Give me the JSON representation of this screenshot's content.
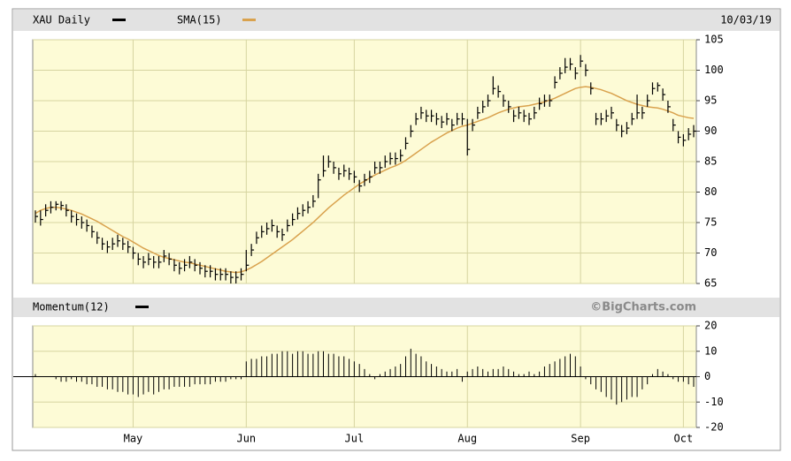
{
  "chart_data": [
    {
      "type": "ohlc",
      "date": "10/03/19",
      "ylim": [
        65,
        105
      ],
      "yticks": [
        65,
        70,
        75,
        80,
        85,
        90,
        95,
        100,
        105
      ],
      "grid": true,
      "series": [
        {
          "name": "XAU Daily",
          "color": "#000000",
          "values": [
            76,
            75.5,
            77,
            77.5,
            78,
            77.8,
            77,
            76,
            75.5,
            75,
            74.5,
            73.5,
            72.5,
            71.5,
            71,
            71.5,
            72,
            71.5,
            71,
            70,
            69,
            68.5,
            69,
            68.5,
            68.5,
            69.5,
            69,
            68,
            67.5,
            68,
            68.5,
            68,
            67.5,
            67,
            67,
            66.5,
            66.5,
            66.5,
            66,
            66,
            66.5,
            68,
            70.5,
            72.5,
            73.5,
            74,
            74.5,
            73.5,
            73,
            74.5,
            75.5,
            76.5,
            77,
            77.5,
            78.5,
            82,
            83.5,
            85,
            84,
            83,
            83.5,
            83,
            82.5,
            81,
            82,
            82.5,
            84,
            84,
            85,
            85.5,
            85.5,
            86,
            88,
            90,
            92,
            93,
            92.5,
            92.5,
            92,
            91.5,
            92,
            91,
            92,
            92,
            87,
            91,
            93,
            94,
            95,
            97,
            96.5,
            95,
            94,
            92.5,
            93,
            92.5,
            92,
            93,
            94.5,
            95,
            95,
            98,
            99.5,
            100.5,
            101,
            99.5,
            101.5,
            100,
            97,
            92,
            92,
            92.5,
            93,
            91,
            90,
            90.5,
            92,
            93,
            93,
            95,
            97,
            97.5,
            96,
            94,
            91,
            89,
            88.5,
            89.5,
            90
          ],
          "high": [
            77,
            77,
            78,
            78.5,
            78.5,
            78.5,
            78,
            77,
            76.5,
            76,
            75.5,
            74.5,
            73.5,
            72.5,
            72,
            72.5,
            73,
            72.5,
            72,
            71,
            70,
            69.5,
            70,
            69.5,
            69.5,
            70.5,
            70,
            69,
            68.5,
            69,
            69.5,
            69,
            68.5,
            68,
            68,
            67.5,
            67.5,
            67.5,
            67,
            67,
            67.5,
            70.5,
            71.5,
            73.5,
            74.5,
            75,
            75.5,
            74.5,
            74,
            75.5,
            76.5,
            77.5,
            78,
            78.5,
            79.5,
            83,
            86,
            86,
            85,
            84,
            84.5,
            84,
            83.5,
            82,
            83,
            83.5,
            85,
            85,
            86,
            86.5,
            86.5,
            87,
            89,
            91,
            93,
            94,
            93.5,
            93.5,
            93,
            92.5,
            93,
            92,
            93,
            93,
            92,
            92,
            94,
            95,
            96,
            99,
            97.5,
            96,
            95,
            93.5,
            94,
            93.5,
            93,
            94,
            95.5,
            96,
            96,
            99,
            100.5,
            102,
            102,
            100.5,
            102.5,
            101,
            98,
            93,
            93,
            93.5,
            94,
            92,
            91,
            91.5,
            93,
            96,
            94,
            96,
            98,
            98,
            97,
            95,
            92,
            90,
            89.5,
            90.5,
            91
          ],
          "low": [
            75,
            74.5,
            76,
            76.5,
            77,
            77,
            76,
            75,
            74.5,
            74,
            73.5,
            72.5,
            71.5,
            70.5,
            70,
            70.5,
            71,
            70.5,
            70,
            69,
            68,
            67.5,
            68,
            67.5,
            67.5,
            68.5,
            68,
            67,
            66.5,
            67,
            67.5,
            67,
            66.5,
            66,
            66,
            65.5,
            65.5,
            65.5,
            65,
            65,
            65.5,
            67,
            69.5,
            71.5,
            72.5,
            73,
            73.5,
            72.5,
            72,
            73.5,
            74.5,
            75.5,
            76,
            76.5,
            77.5,
            79,
            82.5,
            84,
            83,
            82,
            82.5,
            82,
            81.5,
            80,
            81,
            81.5,
            83,
            83,
            84,
            84.5,
            84.5,
            85,
            87,
            89,
            91,
            92,
            91.5,
            91.5,
            91,
            90.5,
            91,
            90,
            91,
            91,
            86,
            90,
            92,
            93,
            94,
            96,
            95.5,
            94,
            93,
            91.5,
            92,
            91.5,
            91,
            92,
            93.5,
            94,
            94,
            97,
            98.5,
            99.5,
            100,
            98.5,
            100.5,
            99,
            96,
            91,
            91,
            91.5,
            92,
            90,
            89,
            89.5,
            91,
            92,
            92,
            94,
            96,
            96.5,
            95,
            93,
            90,
            88,
            87.5,
            88.5,
            89
          ]
        },
        {
          "name": "SMA(15)",
          "color": "#d9a24e",
          "values": [
            76.5,
            77,
            77.3,
            77.5,
            77.5,
            77.4,
            77.2,
            77,
            76.7,
            76.4,
            76,
            75.6,
            75.2,
            74.7,
            74.2,
            73.7,
            73.2,
            72.7,
            72.3,
            71.8,
            71.3,
            70.8,
            70.4,
            70,
            69.6,
            69.3,
            69.1,
            68.9,
            68.7,
            68.5,
            68.4,
            68.2,
            68,
            67.8,
            67.6,
            67.4,
            67.2,
            67,
            66.9,
            66.8,
            66.9,
            67.2,
            67.6,
            68.1,
            68.6,
            69.2,
            69.8,
            70.4,
            71,
            71.6,
            72.2,
            72.9,
            73.6,
            74.3,
            75,
            75.8,
            76.6,
            77.4,
            78.1,
            78.8,
            79.5,
            80.1,
            80.7,
            81.3,
            81.8,
            82.3,
            82.8,
            83.2,
            83.6,
            84,
            84.3,
            84.7,
            85.2,
            85.8,
            86.4,
            87,
            87.6,
            88.2,
            88.7,
            89.2,
            89.7,
            90.1,
            90.5,
            90.8,
            91,
            91.3,
            91.6,
            91.9,
            92.2,
            92.6,
            93,
            93.3,
            93.6,
            93.8,
            94,
            94.1,
            94.2,
            94.4,
            94.6,
            94.8,
            95.1,
            95.4,
            95.8,
            96.2,
            96.6,
            97,
            97.2,
            97.3,
            97.2,
            97,
            96.8,
            96.5,
            96.2,
            95.8,
            95.4,
            95,
            94.7,
            94.4,
            94.2,
            94,
            93.9,
            93.8,
            93.6,
            93.3,
            93,
            92.6,
            92.4,
            92.2,
            92.1
          ]
        }
      ]
    },
    {
      "type": "momentum",
      "source": "©BigCharts.com",
      "ylim": [
        -20,
        20
      ],
      "yticks": [
        -20,
        -10,
        0,
        10,
        20
      ],
      "grid": true,
      "categories": [
        null,
        null,
        null,
        null,
        null,
        null,
        null,
        null,
        null,
        null,
        null,
        null,
        null,
        null,
        null,
        null,
        null,
        null,
        null,
        "May",
        null,
        null,
        null,
        null,
        null,
        null,
        null,
        null,
        null,
        null,
        null,
        null,
        null,
        null,
        null,
        null,
        null,
        null,
        null,
        null,
        null,
        "Jun",
        null,
        null,
        null,
        null,
        null,
        null,
        null,
        null,
        null,
        null,
        null,
        null,
        null,
        null,
        null,
        null,
        null,
        null,
        null,
        null,
        "Jul",
        null,
        null,
        null,
        null,
        null,
        null,
        null,
        null,
        null,
        null,
        null,
        null,
        null,
        null,
        null,
        null,
        null,
        null,
        null,
        null,
        null,
        "Aug",
        null,
        null,
        null,
        null,
        null,
        null,
        null,
        null,
        null,
        null,
        null,
        null,
        null,
        null,
        null,
        null,
        null,
        null,
        null,
        null,
        null,
        "Sep",
        null,
        null,
        null,
        null,
        null,
        null,
        null,
        null,
        null,
        null,
        null,
        null,
        null,
        null,
        null,
        null,
        null,
        null,
        null,
        "Oct",
        null,
        null
      ],
      "series": [
        {
          "name": "Momentum(12)",
          "color": "#000000",
          "values": [
            1,
            0,
            0,
            0,
            -1,
            -2,
            -2,
            -1,
            -2,
            -2,
            -3,
            -3,
            -4,
            -4,
            -5,
            -5,
            -6,
            -6,
            -7,
            -7,
            -8,
            -7,
            -6,
            -7,
            -6,
            -5,
            -5,
            -4,
            -4,
            -4,
            -4,
            -3,
            -3,
            -3,
            -3,
            -2,
            -2,
            -2,
            -1,
            -1,
            -1,
            6,
            7,
            7,
            8,
            8,
            9,
            9,
            10,
            10,
            9,
            10,
            10,
            9,
            9,
            10,
            10,
            9,
            9,
            8,
            8,
            7,
            6,
            5,
            3,
            1,
            -1,
            1,
            2,
            3,
            4,
            5,
            8,
            11,
            9,
            8,
            6,
            5,
            4,
            3,
            2,
            2,
            3,
            -2,
            2,
            3,
            4,
            3,
            2,
            3,
            3,
            4,
            3,
            2,
            1,
            1,
            2,
            1,
            2,
            4,
            5,
            6,
            7,
            8,
            9,
            8,
            4,
            -1,
            -3,
            -5,
            -6,
            -8,
            -9,
            -11,
            -10,
            -9,
            -8,
            -8,
            -5,
            -3,
            1,
            3,
            2,
            1,
            -1,
            -2,
            -2,
            -3,
            -4
          ]
        }
      ]
    }
  ]
}
